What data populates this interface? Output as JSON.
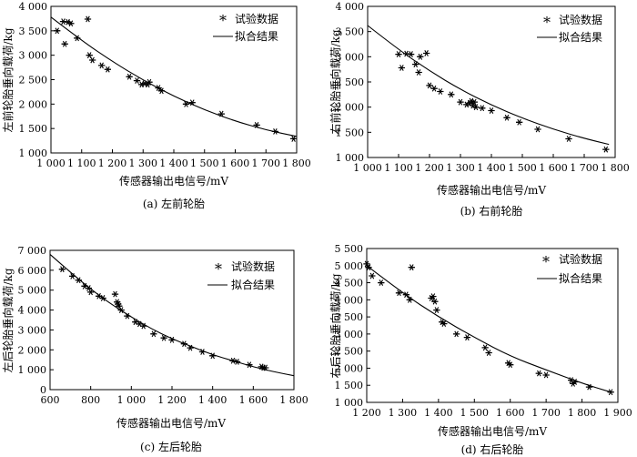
{
  "chart_data": [
    {
      "type": "scatter",
      "title": "",
      "caption": "(a) 左前轮胎",
      "xlabel": "传感器输出电信号/mV",
      "ylabel": "左前轮胎垂向载荷/kg",
      "xlim": [
        1000,
        1800
      ],
      "ylim": [
        1000,
        4000
      ],
      "xticks": [
        1000,
        1100,
        1200,
        1300,
        1400,
        1500,
        1600,
        1700,
        1800
      ],
      "yticks": [
        1000,
        1500,
        2000,
        2500,
        3000,
        3500,
        4000
      ],
      "xtick_labels": [
        "1 000",
        "1 100",
        "1 200",
        "1 300",
        "1 400",
        "1 500",
        "1 600",
        "1 700",
        "1 800"
      ],
      "ytick_labels": [
        "1 000",
        "1 500",
        "2 000",
        "2 500",
        "3 000",
        "3 500",
        "4 000"
      ],
      "legend": {
        "position": "top-right",
        "items": [
          "试验数据",
          "拟合结果"
        ]
      },
      "series": [
        {
          "name": "试验数据",
          "kind": "scatter",
          "x": [
            1020,
            1040,
            1045,
            1055,
            1065,
            1085,
            1120,
            1125,
            1135,
            1165,
            1185,
            1255,
            1280,
            1295,
            1305,
            1315,
            1320,
            1350,
            1360,
            1440,
            1460,
            1555,
            1670,
            1730,
            1790
          ],
          "y": [
            3500,
            3690,
            3230,
            3680,
            3650,
            3350,
            3740,
            3000,
            2900,
            2790,
            2710,
            2560,
            2480,
            2400,
            2420,
            2400,
            2450,
            2330,
            2270,
            2000,
            2030,
            1800,
            1570,
            1440,
            1290
          ]
        },
        {
          "name": "拟合结果",
          "kind": "line",
          "x": [
            1000,
            1100,
            1200,
            1300,
            1400,
            1500,
            1600,
            1700,
            1800
          ],
          "y": [
            3780,
            3300,
            2870,
            2490,
            2160,
            1880,
            1650,
            1470,
            1340
          ]
        }
      ]
    },
    {
      "type": "scatter",
      "title": "",
      "caption": "(b) 右前轮胎",
      "xlabel": "传感器输出电信号/mV",
      "ylabel": "右前轮胎垂向载荷/kg",
      "xlim": [
        1000,
        1800
      ],
      "ylim": [
        1000,
        4000
      ],
      "xticks": [
        1000,
        1100,
        1200,
        1300,
        1400,
        1500,
        1600,
        1700,
        1800
      ],
      "yticks": [
        1000,
        1500,
        2000,
        2500,
        3000,
        3500,
        4000
      ],
      "xtick_labels": [
        "1 000",
        "1 100",
        "1 200",
        "1 300",
        "1 400",
        "1 500",
        "1 600",
        "1 700",
        "1 800"
      ],
      "ytick_labels": [
        "1 000",
        "1 500",
        "2 000",
        "2 500",
        "3 000",
        "3 500",
        "4 000"
      ],
      "legend": {
        "position": "top-right",
        "items": [
          "试验数据",
          "拟合结果"
        ]
      },
      "series": [
        {
          "name": "试验数据",
          "kind": "scatter",
          "x": [
            1100,
            1110,
            1125,
            1140,
            1155,
            1165,
            1170,
            1190,
            1200,
            1215,
            1235,
            1270,
            1300,
            1320,
            1330,
            1335,
            1340,
            1345,
            1350,
            1370,
            1400,
            1450,
            1490,
            1550,
            1650,
            1770
          ],
          "y": [
            3050,
            2780,
            3060,
            3050,
            2850,
            2690,
            3000,
            3070,
            2430,
            2370,
            2310,
            2250,
            2100,
            2050,
            2080,
            2120,
            2030,
            2100,
            2000,
            1980,
            1930,
            1790,
            1700,
            1560,
            1370,
            1160
          ]
        },
        {
          "name": "拟合结果",
          "kind": "line",
          "x": [
            1000,
            1100,
            1200,
            1300,
            1400,
            1500,
            1600,
            1700,
            1780
          ],
          "y": [
            3620,
            3140,
            2720,
            2350,
            2040,
            1780,
            1560,
            1380,
            1260
          ]
        }
      ]
    },
    {
      "type": "scatter",
      "title": "",
      "caption": "(c) 左后轮胎",
      "xlabel": "传感器输出电信号/mV",
      "ylabel": "左后轮胎垂向载荷/kg",
      "xlim": [
        600,
        1800
      ],
      "ylim": [
        0,
        7000
      ],
      "xticks": [
        600,
        800,
        1000,
        1200,
        1400,
        1600,
        1800
      ],
      "yticks": [
        0,
        1000,
        2000,
        3000,
        4000,
        5000,
        6000,
        7000
      ],
      "xtick_labels": [
        "600",
        "800",
        "1 000",
        "1 200",
        "1 400",
        "1 600",
        "1 800"
      ],
      "ytick_labels": [
        "0",
        "1 000",
        "2 000",
        "3 000",
        "4 000",
        "5 000",
        "6 000",
        "7 000"
      ],
      "legend": {
        "position": "top-right",
        "items": [
          "试验数据",
          "拟合结果"
        ]
      },
      "series": [
        {
          "name": "试验数据",
          "kind": "scatter",
          "x": [
            660,
            710,
            740,
            770,
            790,
            800,
            840,
            860,
            920,
            930,
            935,
            940,
            950,
            980,
            1020,
            1040,
            1060,
            1110,
            1160,
            1200,
            1260,
            1290,
            1350,
            1400,
            1500,
            1520,
            1580,
            1640,
            1650,
            1660
          ],
          "y": [
            6050,
            5700,
            5500,
            5200,
            5100,
            4900,
            4700,
            4600,
            4800,
            4400,
            4300,
            4200,
            4000,
            3700,
            3400,
            3300,
            3200,
            2800,
            2600,
            2500,
            2300,
            2100,
            1900,
            1700,
            1450,
            1400,
            1250,
            1150,
            1100,
            1100
          ]
        },
        {
          "name": "拟合结果",
          "kind": "line",
          "x": [
            600,
            700,
            800,
            900,
            1000,
            1100,
            1200,
            1300,
            1400,
            1500,
            1600,
            1700,
            1800
          ],
          "y": [
            6800,
            5900,
            5050,
            4300,
            3650,
            3050,
            2550,
            2150,
            1750,
            1450,
            1150,
            900,
            700
          ]
        }
      ]
    },
    {
      "type": "scatter",
      "title": "",
      "caption": "(d) 右后轮胎",
      "xlabel": "传感器输出电信号/mV",
      "ylabel": "右后轮胎垂向载荷/kg",
      "xlim": [
        1200,
        1900
      ],
      "ylim": [
        1000,
        5500
      ],
      "xticks": [
        1200,
        1300,
        1400,
        1500,
        1600,
        1700,
        1800,
        1900
      ],
      "yticks": [
        1000,
        1500,
        2000,
        2500,
        3000,
        3500,
        4000,
        4500,
        5000,
        5500
      ],
      "xtick_labels": [
        "1 200",
        "1 300",
        "1 400",
        "1 500",
        "1 600",
        "1 700",
        "1 800",
        "1 900"
      ],
      "ytick_labels": [
        "1 000",
        "1 500",
        "2 000",
        "2 500",
        "3 000",
        "3 500",
        "4 000",
        "4 500",
        "5 000",
        "5 500"
      ],
      "legend": {
        "position": "top-right",
        "items": [
          "试验数据",
          "拟合结果"
        ]
      },
      "series": [
        {
          "name": "试验数据",
          "kind": "scatter",
          "x": [
            1200,
            1205,
            1215,
            1240,
            1290,
            1310,
            1325,
            1320,
            1380,
            1385,
            1390,
            1395,
            1410,
            1415,
            1450,
            1480,
            1530,
            1540,
            1595,
            1600,
            1680,
            1700,
            1770,
            1775,
            1780,
            1820,
            1880
          ],
          "y": [
            5050,
            4950,
            4700,
            4500,
            4200,
            4150,
            4950,
            4000,
            4050,
            4100,
            3950,
            3700,
            3350,
            3300,
            3000,
            2900,
            2600,
            2450,
            2150,
            2100,
            1850,
            1800,
            1650,
            1550,
            1600,
            1450,
            1300
          ]
        },
        {
          "name": "拟合结果",
          "kind": "line",
          "x": [
            1200,
            1300,
            1400,
            1500,
            1600,
            1700,
            1800,
            1880
          ],
          "y": [
            5000,
            4200,
            3500,
            2900,
            2350,
            1950,
            1560,
            1300
          ]
        }
      ]
    }
  ]
}
